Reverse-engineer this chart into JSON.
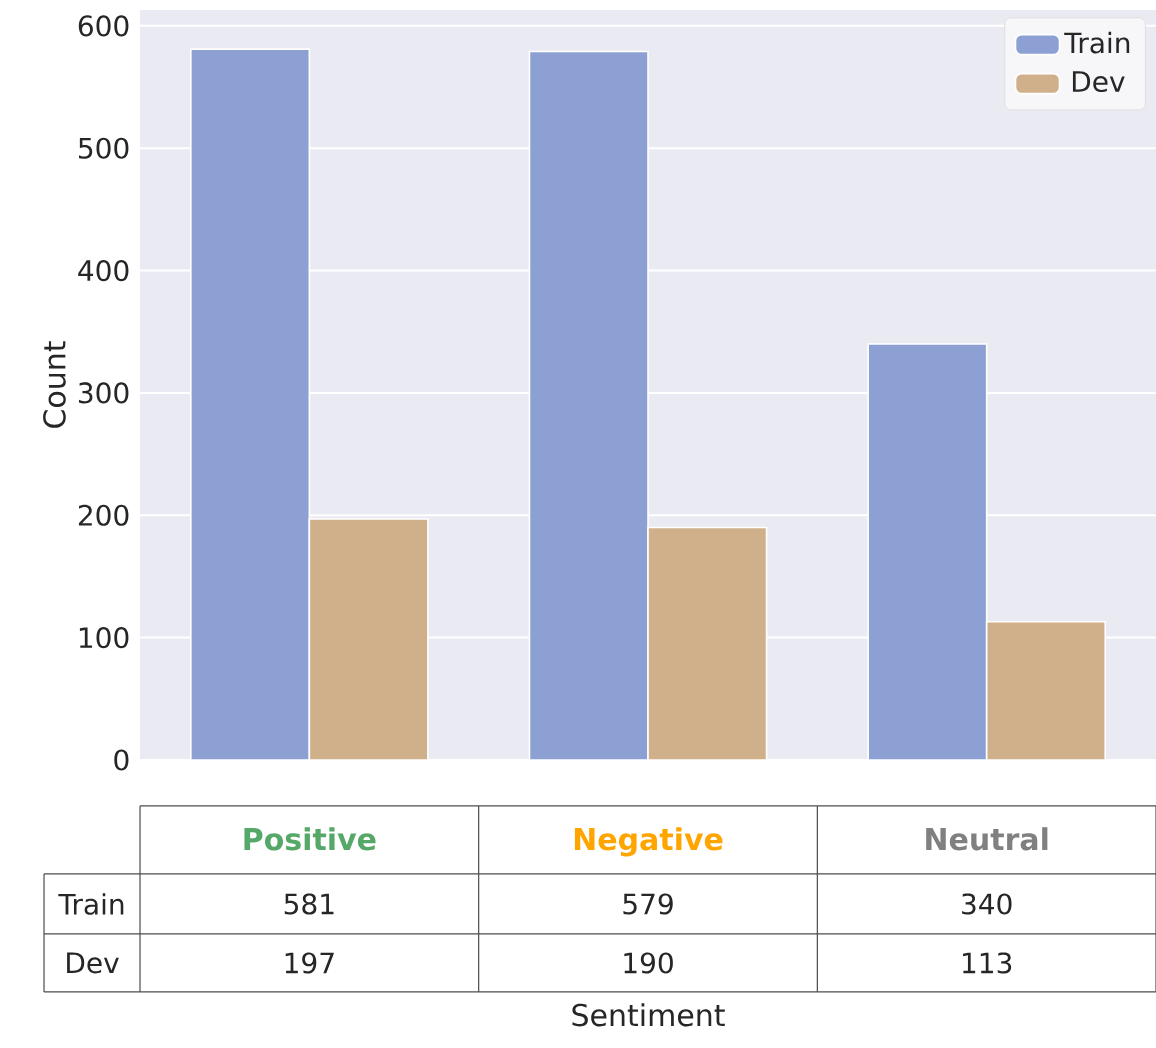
{
  "chart_data": {
    "type": "bar",
    "xlabel": "Sentiment",
    "ylabel": "Count",
    "categories": [
      "Positive",
      "Negative",
      "Neutral"
    ],
    "series": [
      {
        "name": "Train",
        "color": "#8da0d4",
        "values": [
          581,
          579,
          340
        ]
      },
      {
        "name": "Dev",
        "color": "#d0b08a",
        "values": [
          197,
          190,
          113
        ]
      }
    ],
    "ylim": [
      0,
      613
    ],
    "yticks": [
      0,
      100,
      200,
      300,
      400,
      500,
      600
    ],
    "grid": "y",
    "legend": "top right",
    "data_labels": true
  }
}
